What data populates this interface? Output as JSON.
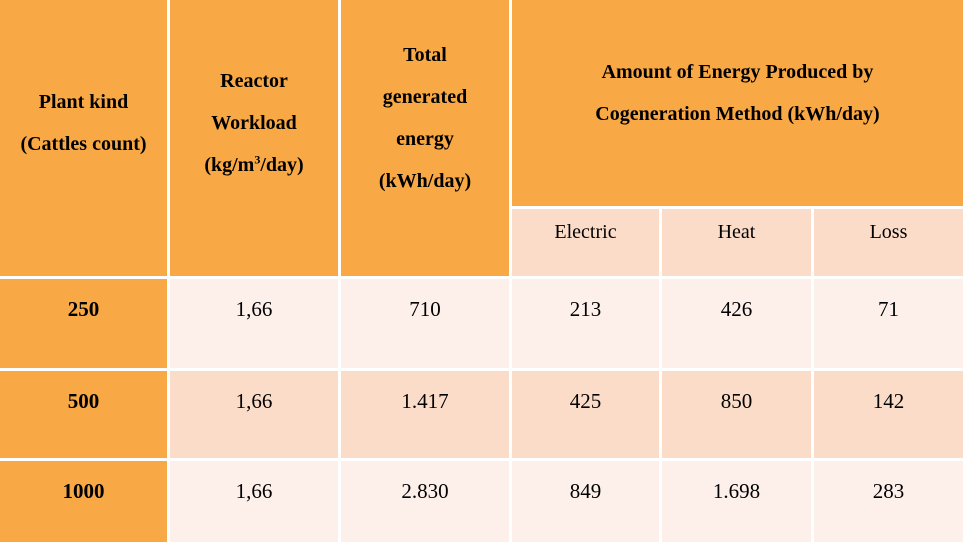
{
  "headers": {
    "plant_line1": "Plant kind",
    "plant_line2": "(Cattles count)",
    "reactor_line1": "Reactor",
    "reactor_line2": "Workload",
    "reactor_unit_pre": "(kg/m",
    "reactor_unit_sup": "3",
    "reactor_unit_post": "/day)",
    "total_line1": "Total",
    "total_line2": "generated",
    "total_line3": "energy",
    "total_line4": "(kWh/day)",
    "amount_line1": "Amount of Energy Produced by",
    "amount_line2": "Cogeneration Method (kWh/day)",
    "sub_electric": "Electric",
    "sub_heat": "Heat",
    "sub_loss": "Loss"
  },
  "rows": [
    {
      "plant": "250",
      "workload": "1,66",
      "total": "710",
      "electric": "213",
      "heat": "426",
      "loss": "71"
    },
    {
      "plant": "500",
      "workload": "1,66",
      "total": "1.417",
      "electric": "425",
      "heat": "850",
      "loss": "142"
    },
    {
      "plant": "1000",
      "workload": "1,66",
      "total": "2.830",
      "electric": "849",
      "heat": "1.698",
      "loss": "283"
    }
  ]
}
